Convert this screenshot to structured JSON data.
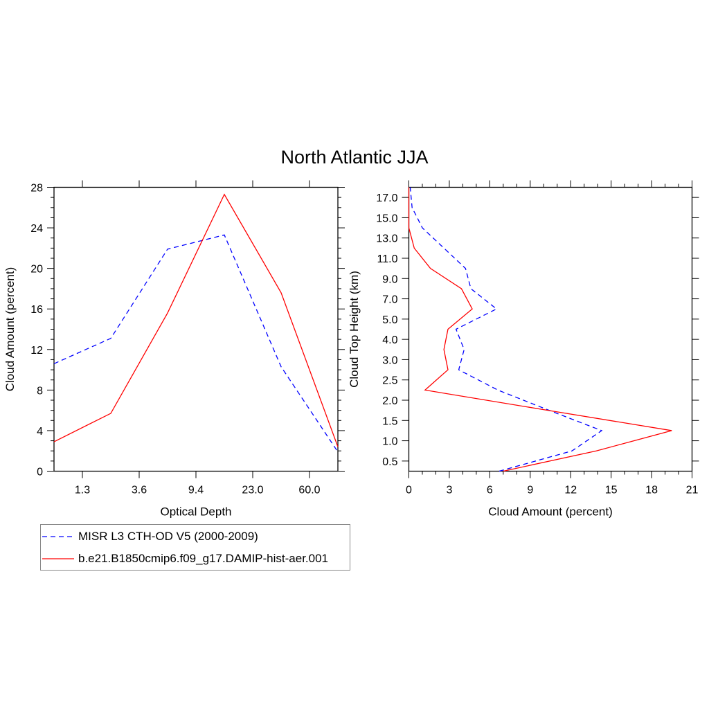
{
  "title": "North Atlantic JJA",
  "colors": {
    "obs": "#0000ff",
    "model": "#ff0000",
    "axis": "#000000"
  },
  "legend": [
    {
      "label": "MISR L3 CTH-OD V5 (2000-2009)",
      "color": "#0000ff",
      "dash": true
    },
    {
      "label": "b.e21.B1850cmip6.f09_g17.DAMIP-hist-aer.001",
      "color": "#ff0000",
      "dash": false
    }
  ],
  "chart_data": [
    {
      "type": "line",
      "title": "North Atlantic JJA",
      "xlabel": "Optical Depth",
      "ylabel": "Cloud Amount (percent)",
      "x": [
        0,
        1,
        2,
        3,
        4,
        5
      ],
      "xlim": [
        0,
        5
      ],
      "xtick_positions": [
        0.5,
        1.5,
        2.5,
        3.5,
        4.5
      ],
      "xtick_labels": [
        "1.3",
        "3.6",
        "9.4",
        "23.0",
        "60.0"
      ],
      "ylim": [
        0,
        28
      ],
      "yticks": [
        0,
        4,
        8,
        12,
        16,
        20,
        24,
        28
      ],
      "ytick_labels": [
        "0",
        "4",
        "8",
        "12",
        "16",
        "20",
        "24",
        "28"
      ],
      "series": [
        {
          "name": "MISR L3 CTH-OD V5 (2000-2009)",
          "values": [
            10.6,
            13.1,
            21.9,
            23.3,
            10.3,
            1.9
          ]
        },
        {
          "name": "b.e21.B1850cmip6.f09_g17.DAMIP-hist-aer.001",
          "values": [
            2.9,
            5.7,
            15.6,
            27.3,
            17.6,
            2.4
          ]
        }
      ]
    },
    {
      "type": "line",
      "xlabel": "Cloud Amount (percent)",
      "ylabel": "Cloud Top Height (km)",
      "xlim": [
        0,
        21
      ],
      "xticks": [
        0,
        3,
        6,
        9,
        12,
        15,
        18,
        21
      ],
      "xtick_labels": [
        "0",
        "3",
        "6",
        "9",
        "12",
        "15",
        "18",
        "21"
      ],
      "y": [
        -0.5,
        0.5,
        1.5,
        2.5,
        3.5,
        4.5,
        5.5,
        6.5,
        7.5,
        8.5,
        9.5,
        10.5,
        11.5,
        12.5,
        13.5
      ],
      "ylim": [
        -0.5,
        13.5
      ],
      "ytick_positions": [
        0,
        1,
        2,
        3,
        4,
        5,
        6,
        7,
        8,
        9,
        10,
        11,
        12,
        13
      ],
      "ytick_labels": [
        "0.5",
        "1.0",
        "1.5",
        "2.0",
        "2.5",
        "3.0",
        "4.0",
        "5.0",
        "7.0",
        "9.0",
        "11.0",
        "13.0",
        "15.0",
        "17.0"
      ],
      "series": [
        {
          "name": "MISR L3 CTH-OD V5 (2000-2009)",
          "values": [
            6.7,
            12.1,
            14.3,
            10.4,
            6.6,
            3.7,
            4.1,
            3.5,
            6.5,
            4.6,
            4.2,
            2.6,
            1.0,
            0.24,
            0.1
          ]
        },
        {
          "name": "b.e21.B1850cmip6.f09_g17.DAMIP-hist-aer.001",
          "values": [
            7.0,
            13.9,
            19.5,
            10.3,
            1.2,
            2.9,
            2.6,
            2.9,
            4.7,
            3.9,
            1.6,
            0.4,
            0.0,
            0.0,
            0.0
          ]
        }
      ]
    }
  ]
}
